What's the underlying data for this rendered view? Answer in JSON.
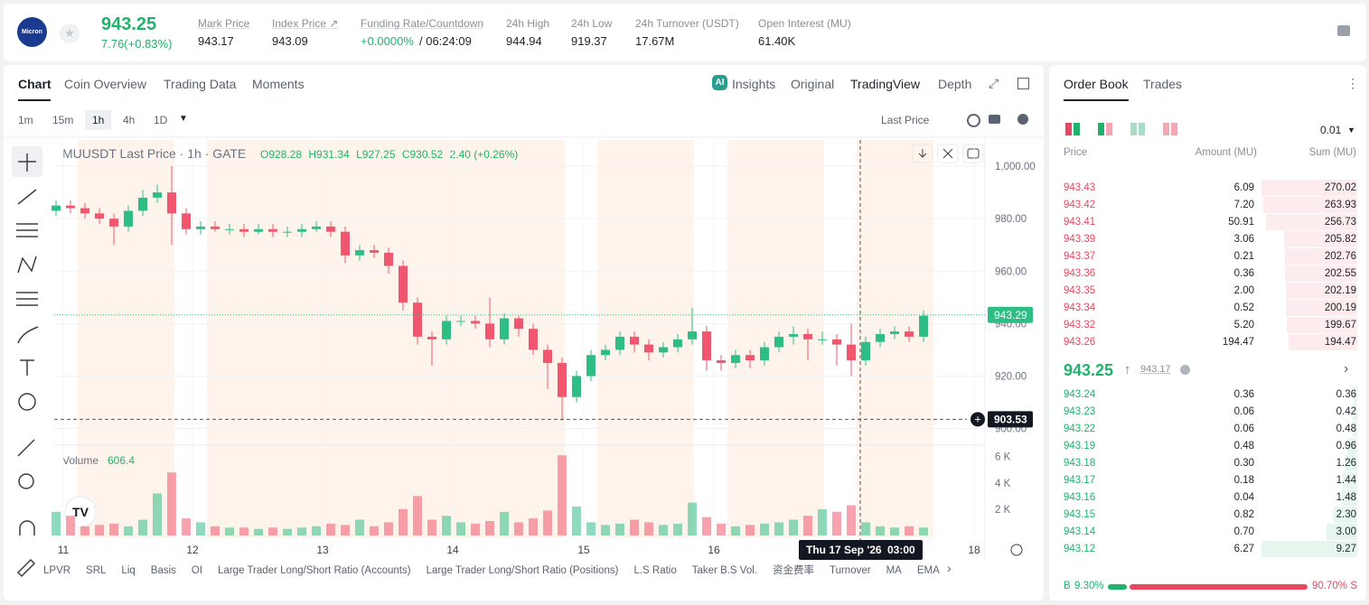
{
  "header": {
    "logo": "Micron",
    "price": "943.25",
    "change": "7.76(+0.83%)",
    "stats": [
      {
        "label": "Mark Price",
        "value": "943.17"
      },
      {
        "label": "Index Price ↗",
        "value": "943.09"
      },
      {
        "label": "Funding Rate/Countdown",
        "value": "+0.0000%",
        "extra": "/ 06:24:09"
      },
      {
        "label": "24h High",
        "value": "944.94"
      },
      {
        "label": "24h Low",
        "value": "919.37"
      },
      {
        "label": "24h Turnover (USDT)",
        "value": "17.67M"
      },
      {
        "label": "Open Interest (MU)",
        "value": "61.40K"
      }
    ]
  },
  "tabs": [
    "Chart",
    "Coin Overview",
    "Trading Data",
    "Moments"
  ],
  "views": [
    "Insights",
    "Original",
    "TradingView",
    "Depth"
  ],
  "intervals": [
    "1m",
    "15m",
    "1h",
    "4h",
    "1D"
  ],
  "price_type": "Last Price",
  "indicators": [
    "LPVR",
    "SRL",
    "Liq",
    "Basis",
    "OI",
    "Large Trader Long/Short Ratio (Accounts)",
    "Large Trader Long/Short Ratio (Positions)",
    "L.S Ratio",
    "Taker B.S Vol.",
    "资金费率",
    "Turnover",
    "MA",
    "EMA",
    "Volume"
  ],
  "chart_data": {
    "type": "candlestick",
    "title": "MUUSDT Last Price · 1h · GATE",
    "legend": {
      "o": "O928.28",
      "h": "H931.34",
      "l": "L927.25",
      "c": "C930.52",
      "change": "2.40 (+0.26%)"
    },
    "up_color": "#2ebd85",
    "down_color": "#f0566e",
    "open": [
      983,
      985,
      984,
      982,
      980,
      977,
      983,
      988,
      990,
      982,
      976,
      977,
      976,
      976,
      975,
      976,
      975,
      975,
      976,
      977,
      975,
      966,
      968,
      967,
      962,
      948,
      935,
      934,
      941,
      941,
      940,
      934,
      942,
      938,
      930,
      925,
      912,
      920,
      928,
      930,
      935,
      932,
      929,
      931,
      934,
      937,
      926,
      925,
      928,
      926,
      931,
      935,
      936,
      934,
      934,
      932,
      926,
      933,
      936,
      937,
      935
    ],
    "high": [
      987,
      987,
      986,
      984,
      982,
      985,
      991,
      993,
      1000,
      984,
      979,
      979,
      978,
      978,
      978,
      978,
      977,
      978,
      979,
      979,
      977,
      970,
      970,
      969,
      964,
      950,
      937,
      943,
      943,
      943,
      950,
      944,
      943,
      940,
      932,
      927,
      922,
      930,
      932,
      937,
      937,
      934,
      933,
      936,
      946,
      939,
      928,
      930,
      930,
      933,
      937,
      939,
      938,
      937,
      936,
      940,
      935,
      938,
      939,
      939,
      945
    ],
    "low": [
      981,
      982,
      980,
      978,
      970,
      975,
      981,
      986,
      970,
      974,
      974,
      975,
      974,
      973,
      974,
      973,
      973,
      973,
      975,
      973,
      963,
      964,
      965,
      959,
      945,
      932,
      924,
      932,
      939,
      938,
      931,
      932,
      935,
      928,
      915,
      903,
      910,
      918,
      926,
      928,
      929,
      926,
      927,
      929,
      932,
      922,
      922,
      923,
      923,
      924,
      929,
      932,
      926,
      932,
      924,
      920,
      924,
      931,
      934,
      933,
      933
    ],
    "close": [
      985,
      984,
      982,
      980,
      977,
      983,
      988,
      990,
      982,
      976,
      977,
      976,
      976,
      975,
      976,
      975,
      975,
      976,
      977,
      975,
      966,
      968,
      967,
      962,
      948,
      935,
      934,
      941,
      941,
      940,
      934,
      942,
      938,
      930,
      925,
      912,
      920,
      928,
      930,
      935,
      932,
      929,
      931,
      934,
      937,
      926,
      925,
      928,
      926,
      931,
      935,
      936,
      934,
      934,
      932,
      926,
      933,
      936,
      937,
      935,
      943
    ],
    "volume": [
      1800,
      1500,
      700,
      800,
      900,
      700,
      1200,
      3200,
      4800,
      1300,
      1000,
      700,
      600,
      600,
      500,
      600,
      500,
      600,
      700,
      900,
      800,
      1200,
      700,
      1000,
      2000,
      3000,
      1200,
      1500,
      1000,
      900,
      1100,
      1800,
      1000,
      1300,
      1900,
      6100,
      2200,
      1000,
      800,
      900,
      1200,
      1000,
      800,
      900,
      2500,
      1400,
      900,
      700,
      800,
      900,
      1000,
      1200,
      1500,
      2000,
      1800,
      2300,
      1000,
      700,
      600,
      700,
      606.4
    ],
    "volume_title": "Volume",
    "xlim": [
      -0.125,
      64.25
    ],
    "xticks": [
      {
        "value": 0.5,
        "label": "11"
      },
      {
        "value": 9.44,
        "label": "12"
      },
      {
        "value": 18.44,
        "label": "13"
      },
      {
        "value": 27.44,
        "label": "14"
      },
      {
        "value": 36.5,
        "label": "15"
      },
      {
        "value": 45.5,
        "label": "16"
      },
      {
        "value": 63.5,
        "label": "18"
      }
    ],
    "ylim": [
      894,
      1010
    ],
    "yticks": [
      {
        "value": 900,
        "label": "900.00"
      },
      {
        "value": 920,
        "label": "920.00"
      },
      {
        "value": 940,
        "label": "940.00"
      },
      {
        "value": 960,
        "label": "960.00"
      },
      {
        "value": 980,
        "label": "980.00"
      },
      {
        "value": 1000,
        "label": "1,000.00"
      }
    ],
    "volume_ylim": [
      0,
      6600
    ],
    "volume_ticks": [
      {
        "value": 2000,
        "label": "2 K"
      },
      {
        "value": 4000,
        "label": "4 K"
      },
      {
        "value": 6000,
        "label": "6 K"
      }
    ],
    "last_price": 943.29,
    "crosshair_price": 903.53,
    "crosshair_date": "Thu 17 Sep '26",
    "crosshair_time": "03:00",
    "grid": true
  },
  "order_book": {
    "tabs": [
      "Order Book",
      "Trades"
    ],
    "step": "0.01",
    "columns": [
      "Price",
      "Amount (MU)",
      "Sum (MU)"
    ],
    "asks": [
      [
        "943.43",
        "6.09",
        "270.02"
      ],
      [
        "943.42",
        "7.20",
        "263.93"
      ],
      [
        "943.41",
        "50.91",
        "256.73"
      ],
      [
        "943.39",
        "3.06",
        "205.82"
      ],
      [
        "943.37",
        "0.21",
        "202.76"
      ],
      [
        "943.36",
        "0.36",
        "202.55"
      ],
      [
        "943.35",
        "2.00",
        "202.19"
      ],
      [
        "943.34",
        "0.52",
        "200.19"
      ],
      [
        "943.32",
        "5.20",
        "199.67"
      ],
      [
        "943.26",
        "194.47",
        "194.47"
      ]
    ],
    "mid_price": "943.25",
    "mid_mark": "943.17",
    "bids": [
      [
        "943.24",
        "0.36",
        "0.36"
      ],
      [
        "943.23",
        "0.06",
        "0.42"
      ],
      [
        "943.22",
        "0.06",
        "0.48"
      ],
      [
        "943.19",
        "0.48",
        "0.96"
      ],
      [
        "943.18",
        "0.30",
        "1.26"
      ],
      [
        "943.17",
        "0.18",
        "1.44"
      ],
      [
        "943.16",
        "0.04",
        "1.48"
      ],
      [
        "943.15",
        "0.82",
        "2.30"
      ],
      [
        "943.14",
        "0.70",
        "3.00"
      ],
      [
        "943.12",
        "6.27",
        "9.27"
      ]
    ],
    "buy_ratio": "9.30%",
    "sell_ratio": "90.70%",
    "buy_label": "B",
    "sell_label": "S"
  }
}
